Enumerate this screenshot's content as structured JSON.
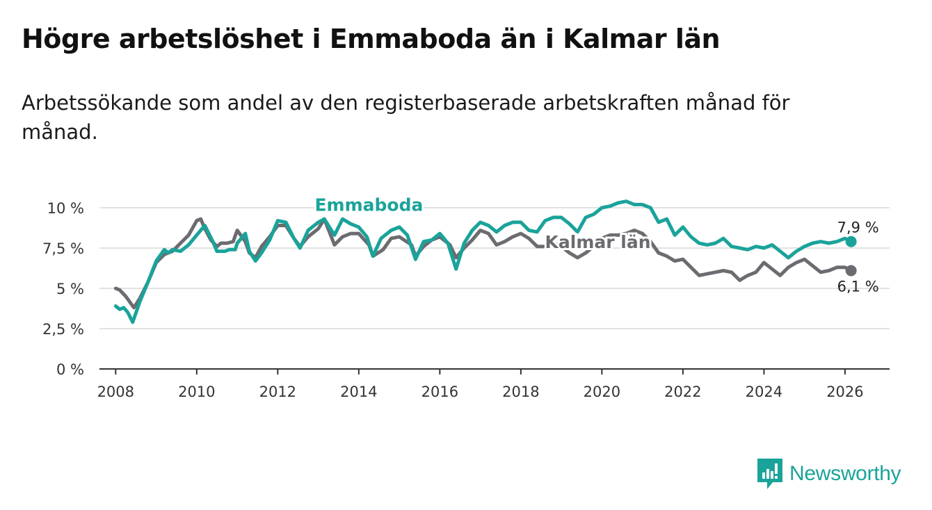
{
  "header": {
    "title": "Högre arbetslöshet i Emmaboda än i Kalmar län",
    "subtitle": "Arbetssökande som andel av den registerbaserade arbetskraften månad för månad."
  },
  "brand": {
    "name": "Newsworthy",
    "color": "#1aa39a",
    "icon": "bar-chart-logo-icon"
  },
  "chart_data": {
    "type": "line",
    "title": "Högre arbetslöshet i Emmaboda än i Kalmar län",
    "xlabel": "",
    "ylabel": "",
    "xlim": [
      2007.6,
      2027.1
    ],
    "ylim": [
      0,
      10
    ],
    "grid": true,
    "y_ticks": [
      0,
      2.5,
      5,
      7.5,
      10
    ],
    "y_tick_labels": [
      "0 %",
      "2,5 %",
      "5 %",
      "7,5 %",
      "10 %"
    ],
    "x_ticks": [
      2008,
      2010,
      2012,
      2014,
      2016,
      2018,
      2020,
      2022,
      2024,
      2026
    ],
    "x_tick_labels": [
      "2008",
      "2010",
      "2012",
      "2014",
      "2016",
      "2018",
      "2020",
      "2022",
      "2024",
      "2026"
    ],
    "series": [
      {
        "name": "Kalmar län",
        "label": "Kalmar län",
        "color": "#6b6b70",
        "end_label": "6,1 %",
        "x": [
          2008,
          2008.1,
          2008.25,
          2008.45,
          2008.6,
          2008.8,
          2009,
          2009.2,
          2009.4,
          2009.6,
          2009.8,
          2010,
          2010.1,
          2010.2,
          2010.35,
          2010.5,
          2010.6,
          2010.75,
          2010.9,
          2011,
          2011.2,
          2011.3,
          2011.45,
          2011.6,
          2011.8,
          2012,
          2012.2,
          2012.4,
          2012.55,
          2012.75,
          2013,
          2013.15,
          2013.4,
          2013.6,
          2013.8,
          2014,
          2014.25,
          2014.35,
          2014.6,
          2014.8,
          2015,
          2015.3,
          2015.4,
          2015.6,
          2015.8,
          2016,
          2016.25,
          2016.4,
          2016.6,
          2016.8,
          2017,
          2017.2,
          2017.4,
          2017.6,
          2017.8,
          2018,
          2018.2,
          2018.4,
          2018.6,
          2018.8,
          2019,
          2019.2,
          2019.4,
          2019.6,
          2019.8,
          2020,
          2020.2,
          2020.4,
          2020.6,
          2020.8,
          2021,
          2021.2,
          2021.4,
          2021.6,
          2021.8,
          2022,
          2022.2,
          2022.4,
          2022.6,
          2022.8,
          2023,
          2023.2,
          2023.4,
          2023.6,
          2023.8,
          2024,
          2024.2,
          2024.4,
          2024.6,
          2024.8,
          2025,
          2025.2,
          2025.4,
          2025.6,
          2025.8,
          2026,
          2026.15
        ],
        "values": [
          5.0,
          4.9,
          4.5,
          3.8,
          4.4,
          5.4,
          6.6,
          7.1,
          7.3,
          7.8,
          8.3,
          9.2,
          9.3,
          8.7,
          8.0,
          7.6,
          7.8,
          7.8,
          7.9,
          8.6,
          7.9,
          7.2,
          6.9,
          7.6,
          8.2,
          8.9,
          8.9,
          8.1,
          7.6,
          8.2,
          8.7,
          9.3,
          7.7,
          8.2,
          8.4,
          8.4,
          7.7,
          7.0,
          7.4,
          8.1,
          8.2,
          7.7,
          7.0,
          7.6,
          8.0,
          8.2,
          7.7,
          6.9,
          7.5,
          8.0,
          8.6,
          8.4,
          7.7,
          7.9,
          8.2,
          8.4,
          8.1,
          7.6,
          7.6,
          7.8,
          7.6,
          7.2,
          6.9,
          7.2,
          7.6,
          8.1,
          8.3,
          8.3,
          8.4,
          8.6,
          8.4,
          7.9,
          7.2,
          7.0,
          6.7,
          6.8,
          6.3,
          5.8,
          5.9,
          6.0,
          6.1,
          6.0,
          5.5,
          5.8,
          6.0,
          6.6,
          6.2,
          5.8,
          6.3,
          6.6,
          6.8,
          6.4,
          6.0,
          6.1,
          6.3,
          6.3,
          6.1
        ]
      },
      {
        "name": "Emmaboda",
        "label": "Emmaboda",
        "color": "#1aa39a",
        "end_label": "7,9 %",
        "x": [
          2008,
          2008.1,
          2008.2,
          2008.3,
          2008.42,
          2008.6,
          2008.8,
          2009,
          2009.2,
          2009.3,
          2009.4,
          2009.6,
          2009.8,
          2010,
          2010.2,
          2010.4,
          2010.5,
          2010.6,
          2010.7,
          2010.8,
          2010.95,
          2011,
          2011.2,
          2011.3,
          2011.45,
          2011.6,
          2011.8,
          2012,
          2012.2,
          2012.4,
          2012.55,
          2012.75,
          2013,
          2013.15,
          2013.4,
          2013.6,
          2013.8,
          2014,
          2014.2,
          2014.35,
          2014.55,
          2014.8,
          2015,
          2015.2,
          2015.4,
          2015.6,
          2015.8,
          2016,
          2016.2,
          2016.4,
          2016.6,
          2016.8,
          2017,
          2017.2,
          2017.4,
          2017.6,
          2017.8,
          2018,
          2018.2,
          2018.4,
          2018.6,
          2018.8,
          2019,
          2019.2,
          2019.4,
          2019.6,
          2019.8,
          2020,
          2020.2,
          2020.4,
          2020.6,
          2020.8,
          2021,
          2021.2,
          2021.4,
          2021.6,
          2021.8,
          2022,
          2022.2,
          2022.4,
          2022.6,
          2022.8,
          2023,
          2023.2,
          2023.4,
          2023.6,
          2023.8,
          2024,
          2024.2,
          2024.4,
          2024.6,
          2024.8,
          2025,
          2025.2,
          2025.4,
          2025.6,
          2025.8,
          2026,
          2026.15
        ],
        "values": [
          3.9,
          3.7,
          3.8,
          3.5,
          2.9,
          4.2,
          5.4,
          6.7,
          7.4,
          7.2,
          7.4,
          7.3,
          7.7,
          8.3,
          8.9,
          7.9,
          7.3,
          7.3,
          7.3,
          7.4,
          7.4,
          7.8,
          8.4,
          7.3,
          6.7,
          7.2,
          8.0,
          9.2,
          9.1,
          8.1,
          7.5,
          8.6,
          9.1,
          9.3,
          8.3,
          9.3,
          9.0,
          8.8,
          8.2,
          7.0,
          8.1,
          8.6,
          8.8,
          8.3,
          6.8,
          7.9,
          8.0,
          8.4,
          7.8,
          6.2,
          7.8,
          8.6,
          9.1,
          8.9,
          8.5,
          8.9,
          9.1,
          9.1,
          8.6,
          8.5,
          9.2,
          9.4,
          9.4,
          9.0,
          8.5,
          9.4,
          9.6,
          10.0,
          10.1,
          10.3,
          10.4,
          10.2,
          10.2,
          10.0,
          9.1,
          9.3,
          8.3,
          8.8,
          8.2,
          7.8,
          7.7,
          7.8,
          8.1,
          7.6,
          7.5,
          7.4,
          7.6,
          7.5,
          7.7,
          7.3,
          6.9,
          7.3,
          7.6,
          7.8,
          7.9,
          7.8,
          7.9,
          8.1,
          7.9
        ]
      }
    ]
  }
}
